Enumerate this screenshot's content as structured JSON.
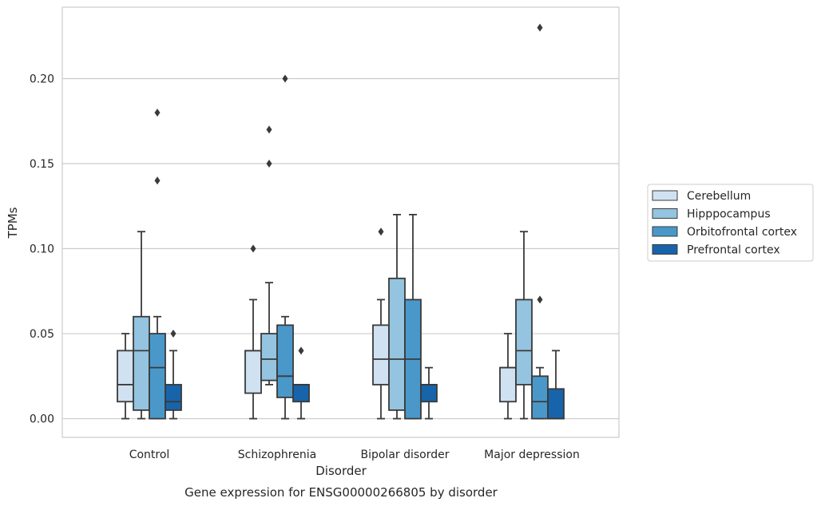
{
  "chart_data": {
    "type": "box",
    "caption": "Gene expression for ENSG00000266805 by disorder",
    "xlabel": "Disorder",
    "ylabel": "TPMs",
    "ylim": [
      -0.011,
      0.242
    ],
    "yticks": [
      "0.00",
      "0.05",
      "0.10",
      "0.15",
      "0.20"
    ],
    "grid": "horizontal",
    "legend_position": "right",
    "categories": [
      "Control",
      "Schizophrenia",
      "Bipolar disorder",
      "Major depression"
    ],
    "series": [
      {
        "name": "Cerebellum",
        "color": "#d0e1f2",
        "boxes": [
          {
            "whislo": 0.0,
            "q1": 0.01,
            "med": 0.02,
            "q3": 0.04,
            "whishi": 0.05,
            "fliers": []
          },
          {
            "whislo": 0.0,
            "q1": 0.015,
            "med": 0.04,
            "q3": 0.04,
            "whishi": 0.07,
            "fliers": [
              0.1
            ]
          },
          {
            "whislo": 0.0,
            "q1": 0.02,
            "med": 0.035,
            "q3": 0.055,
            "whishi": 0.07,
            "fliers": [
              0.11
            ]
          },
          {
            "whislo": 0.0,
            "q1": 0.01,
            "med": 0.03,
            "q3": 0.03,
            "whishi": 0.05,
            "fliers": []
          }
        ]
      },
      {
        "name": "Hipppocampus",
        "color": "#94c4df",
        "boxes": [
          {
            "whislo": 0.0,
            "q1": 0.005,
            "med": 0.04,
            "q3": 0.06,
            "whishi": 0.11,
            "fliers": []
          },
          {
            "whislo": 0.02,
            "q1": 0.0225,
            "med": 0.035,
            "q3": 0.05,
            "whishi": 0.08,
            "fliers": [
              0.15,
              0.17
            ]
          },
          {
            "whislo": 0.0,
            "q1": 0.005,
            "med": 0.035,
            "q3": 0.0825,
            "whishi": 0.12,
            "fliers": []
          },
          {
            "whislo": 0.0,
            "q1": 0.02,
            "med": 0.04,
            "q3": 0.07,
            "whishi": 0.11,
            "fliers": []
          }
        ]
      },
      {
        "name": "Orbitofrontal cortex",
        "color": "#4a98c9",
        "boxes": [
          {
            "whislo": 0.0,
            "q1": 0.0,
            "med": 0.03,
            "q3": 0.05,
            "whishi": 0.06,
            "fliers": [
              0.14,
              0.18
            ]
          },
          {
            "whislo": 0.0,
            "q1": 0.0125,
            "med": 0.025,
            "q3": 0.055,
            "whishi": 0.06,
            "fliers": [
              0.2
            ]
          },
          {
            "whislo": 0.0,
            "q1": 0.0,
            "med": 0.035,
            "q3": 0.07,
            "whishi": 0.12,
            "fliers": []
          },
          {
            "whislo": 0.0,
            "q1": 0.0,
            "med": 0.01,
            "q3": 0.025,
            "whishi": 0.03,
            "fliers": [
              0.07,
              0.23
            ]
          }
        ]
      },
      {
        "name": "Prefrontal cortex",
        "color": "#1764ab",
        "boxes": [
          {
            "whislo": 0.0,
            "q1": 0.005,
            "med": 0.01,
            "q3": 0.02,
            "whishi": 0.04,
            "fliers": [
              0.05
            ]
          },
          {
            "whislo": 0.0,
            "q1": 0.01,
            "med": 0.02,
            "q3": 0.02,
            "whishi": 0.02,
            "fliers": [
              0.04
            ]
          },
          {
            "whislo": 0.0,
            "q1": 0.01,
            "med": 0.02,
            "q3": 0.02,
            "whishi": 0.03,
            "fliers": []
          },
          {
            "whislo": 0.0,
            "q1": 0.0,
            "med": 0.0,
            "q3": 0.0175,
            "whishi": 0.04,
            "fliers": []
          }
        ]
      }
    ]
  }
}
